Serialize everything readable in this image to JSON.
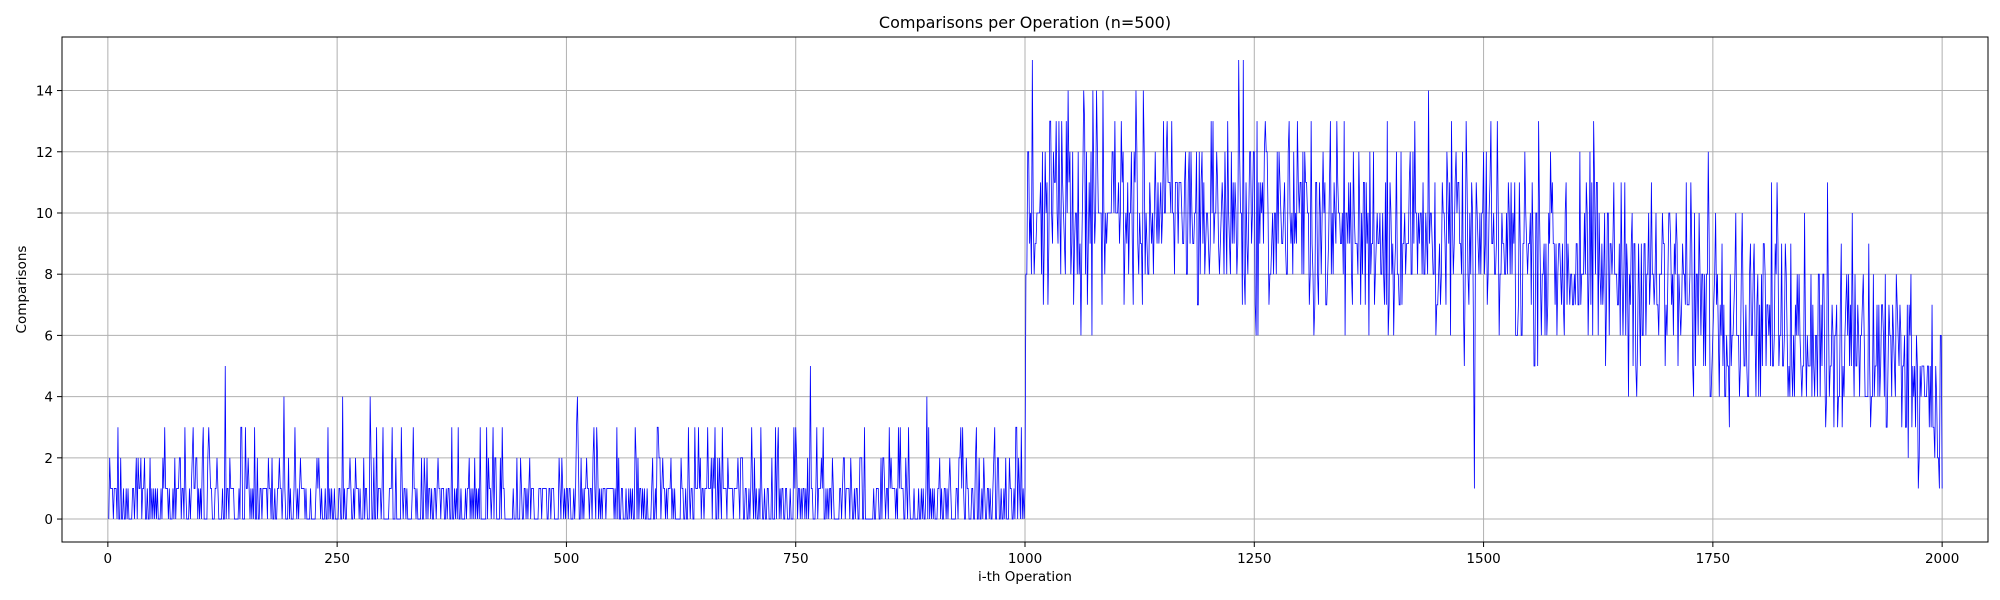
{
  "chart_data": {
    "type": "line",
    "title": "Comparisons per Operation (n=500)",
    "xlabel": "i-th Operation",
    "ylabel": "Comparisons",
    "xlim": [
      -50,
      2050
    ],
    "ylim": [
      -0.75,
      15.75
    ],
    "x_ticks": [
      0,
      250,
      500,
      750,
      1000,
      1250,
      1500,
      1750,
      2000
    ],
    "y_ticks": [
      0,
      2,
      4,
      6,
      8,
      10,
      12,
      14
    ],
    "grid": true,
    "series": [
      {
        "color": "#0000ff",
        "x_start": 1,
        "x_step": 1,
        "count": 2000,
        "sampled_points": [
          [
            1,
            0
          ],
          [
            4,
            1
          ],
          [
            8,
            1
          ],
          [
            14,
            2
          ],
          [
            22,
            1
          ],
          [
            30,
            1
          ],
          [
            40,
            2
          ],
          [
            50,
            1
          ],
          [
            62,
            3
          ],
          [
            78,
            2
          ],
          [
            96,
            2
          ],
          [
            110,
            3
          ],
          [
            128,
            5
          ],
          [
            145,
            3
          ],
          [
            160,
            3
          ],
          [
            175,
            2
          ],
          [
            192,
            4
          ],
          [
            210,
            2
          ],
          [
            230,
            2
          ],
          [
            240,
            3
          ],
          [
            256,
            4
          ],
          [
            270,
            2
          ],
          [
            286,
            4
          ],
          [
            300,
            3
          ],
          [
            320,
            3
          ],
          [
            345,
            2
          ],
          [
            360,
            2
          ],
          [
            382,
            3
          ],
          [
            400,
            2
          ],
          [
            413,
            3
          ],
          [
            430,
            3
          ],
          [
            450,
            2
          ],
          [
            470,
            1
          ],
          [
            495,
            2
          ],
          [
            512,
            4
          ],
          [
            530,
            3
          ],
          [
            555,
            3
          ],
          [
            575,
            3
          ],
          [
            600,
            3
          ],
          [
            625,
            2
          ],
          [
            640,
            3
          ],
          [
            660,
            2
          ],
          [
            690,
            2
          ],
          [
            712,
            3
          ],
          [
            730,
            2
          ],
          [
            750,
            3
          ],
          [
            766,
            5
          ],
          [
            790,
            2
          ],
          [
            810,
            2
          ],
          [
            825,
            3
          ],
          [
            845,
            2
          ],
          [
            870,
            2
          ],
          [
            893,
            4
          ],
          [
            918,
            2
          ],
          [
            930,
            3
          ],
          [
            950,
            2
          ],
          [
            970,
            2
          ],
          [
            990,
            3
          ],
          [
            1000,
            1
          ],
          [
            1001,
            8
          ],
          [
            1004,
            12
          ],
          [
            1008,
            15
          ],
          [
            1015,
            10
          ],
          [
            1022,
            12
          ],
          [
            1030,
            9
          ],
          [
            1040,
            13
          ],
          [
            1047,
            14
          ],
          [
            1055,
            10
          ],
          [
            1065,
            13
          ],
          [
            1075,
            11
          ],
          [
            1085,
            14
          ],
          [
            1095,
            12
          ],
          [
            1105,
            13
          ],
          [
            1115,
            10
          ],
          [
            1130,
            12
          ],
          [
            1145,
            11
          ],
          [
            1155,
            13
          ],
          [
            1165,
            11
          ],
          [
            1175,
            12
          ],
          [
            1185,
            10
          ],
          [
            1195,
            11
          ],
          [
            1205,
            13
          ],
          [
            1215,
            11
          ],
          [
            1225,
            12
          ],
          [
            1233,
            15
          ],
          [
            1238,
            15
          ],
          [
            1250,
            12
          ],
          [
            1262,
            13
          ],
          [
            1275,
            12
          ],
          [
            1288,
            13
          ],
          [
            1300,
            11
          ],
          [
            1312,
            13
          ],
          [
            1325,
            12
          ],
          [
            1340,
            13
          ],
          [
            1355,
            11
          ],
          [
            1365,
            10
          ],
          [
            1380,
            12
          ],
          [
            1395,
            13
          ],
          [
            1410,
            12
          ],
          [
            1425,
            13
          ],
          [
            1440,
            14
          ],
          [
            1455,
            11
          ],
          [
            1470,
            12
          ],
          [
            1490,
            1
          ],
          [
            1500,
            12
          ],
          [
            1515,
            13
          ],
          [
            1530,
            11
          ],
          [
            1545,
            12
          ],
          [
            1560,
            13
          ],
          [
            1575,
            11
          ],
          [
            1590,
            11
          ],
          [
            1605,
            12
          ],
          [
            1620,
            13
          ],
          [
            1635,
            10
          ],
          [
            1650,
            11
          ],
          [
            1665,
            9
          ],
          [
            1680,
            10
          ],
          [
            1695,
            10
          ],
          [
            1710,
            10
          ],
          [
            1730,
            10
          ],
          [
            1745,
            12
          ],
          [
            1760,
            9
          ],
          [
            1775,
            10
          ],
          [
            1790,
            8
          ],
          [
            1805,
            9
          ],
          [
            1820,
            11
          ],
          [
            1835,
            9
          ],
          [
            1850,
            10
          ],
          [
            1865,
            8
          ],
          [
            1875,
            11
          ],
          [
            1890,
            9
          ],
          [
            1905,
            8
          ],
          [
            1920,
            9
          ],
          [
            1935,
            7
          ],
          [
            1950,
            8
          ],
          [
            1962,
            7
          ],
          [
            1972,
            6
          ],
          [
            1982,
            4
          ],
          [
            1990,
            3
          ],
          [
            1995,
            2
          ],
          [
            2000,
            1
          ]
        ]
      }
    ]
  }
}
